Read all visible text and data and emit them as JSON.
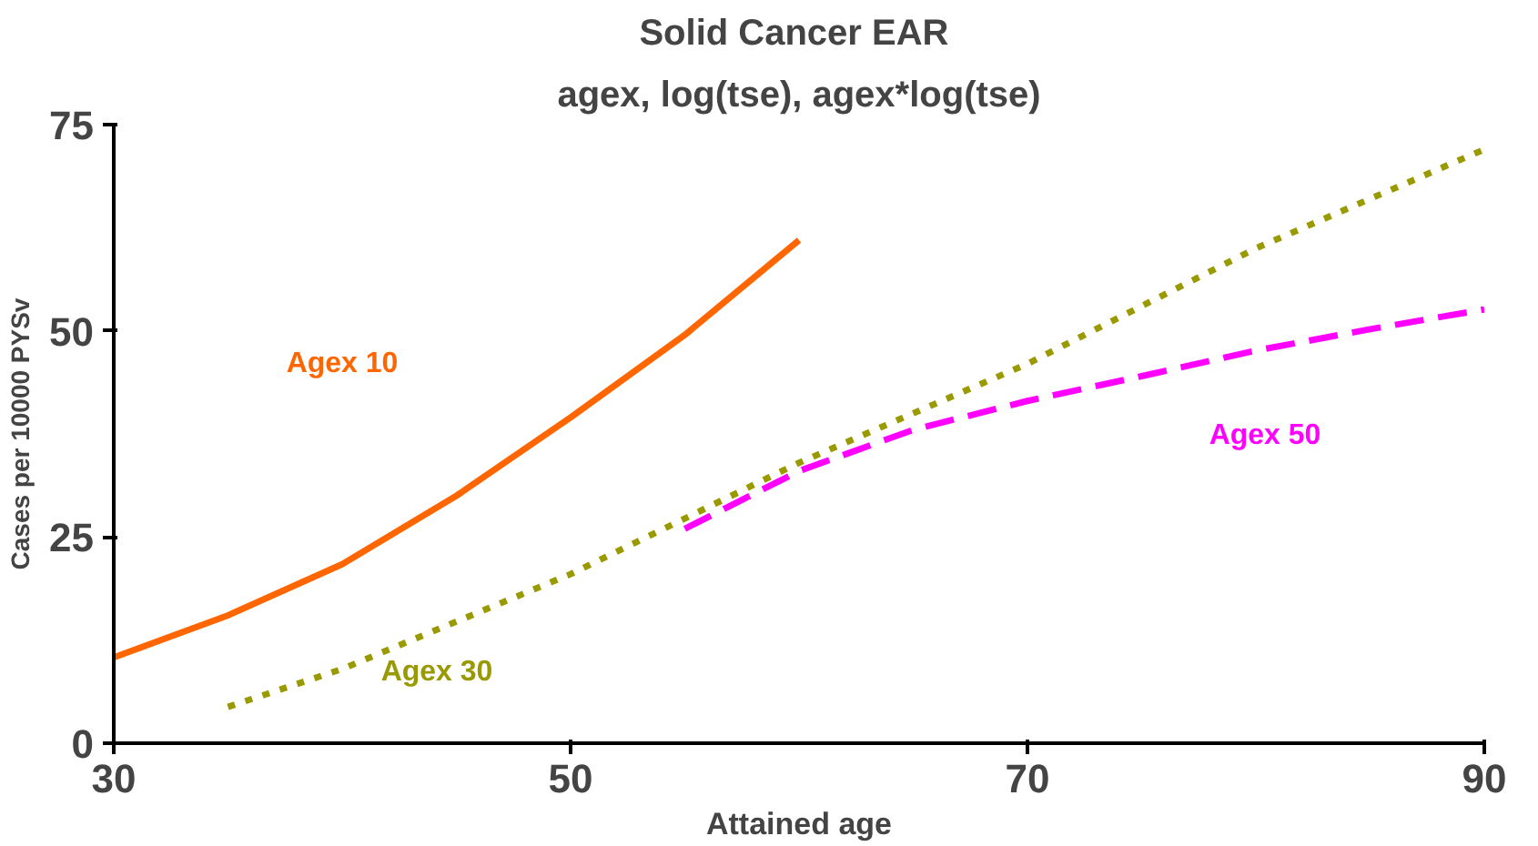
{
  "chart_data": {
    "type": "line",
    "title": "Solid Cancer  EAR",
    "subtitle": "agex, log(tse), agex*log(tse)",
    "xlabel": "Attained age",
    "ylabel": "Cases per 10000 PYSv",
    "xlim": [
      30,
      90
    ],
    "xticks": [
      30,
      50,
      70,
      90
    ],
    "ylim": [
      0,
      75
    ],
    "yticks": [
      0,
      25,
      50,
      75
    ],
    "grid": false,
    "legend": false,
    "series": [
      {
        "name": "Agex 10",
        "color": "#ff6600",
        "line_style": "solid",
        "x": [
          30,
          35,
          40,
          45,
          50,
          55,
          60
        ],
        "values": [
          10.4,
          15.5,
          21.7,
          30,
          39.5,
          49.5,
          61
        ]
      },
      {
        "name": "Agex 30",
        "color": "#999900",
        "line_style": "dotted",
        "x": [
          35,
          40,
          50,
          60,
          70,
          80,
          90
        ],
        "values": [
          4.4,
          9,
          20.5,
          34,
          46,
          60,
          72
        ]
      },
      {
        "name": "Agex 50",
        "color": "#ff00ff",
        "line_style": "dashed",
        "x": [
          55,
          60,
          65,
          70,
          75,
          80,
          85,
          90
        ],
        "values": [
          26,
          33,
          38,
          41.5,
          44.5,
          47.6,
          50.2,
          52.6
        ]
      }
    ]
  }
}
